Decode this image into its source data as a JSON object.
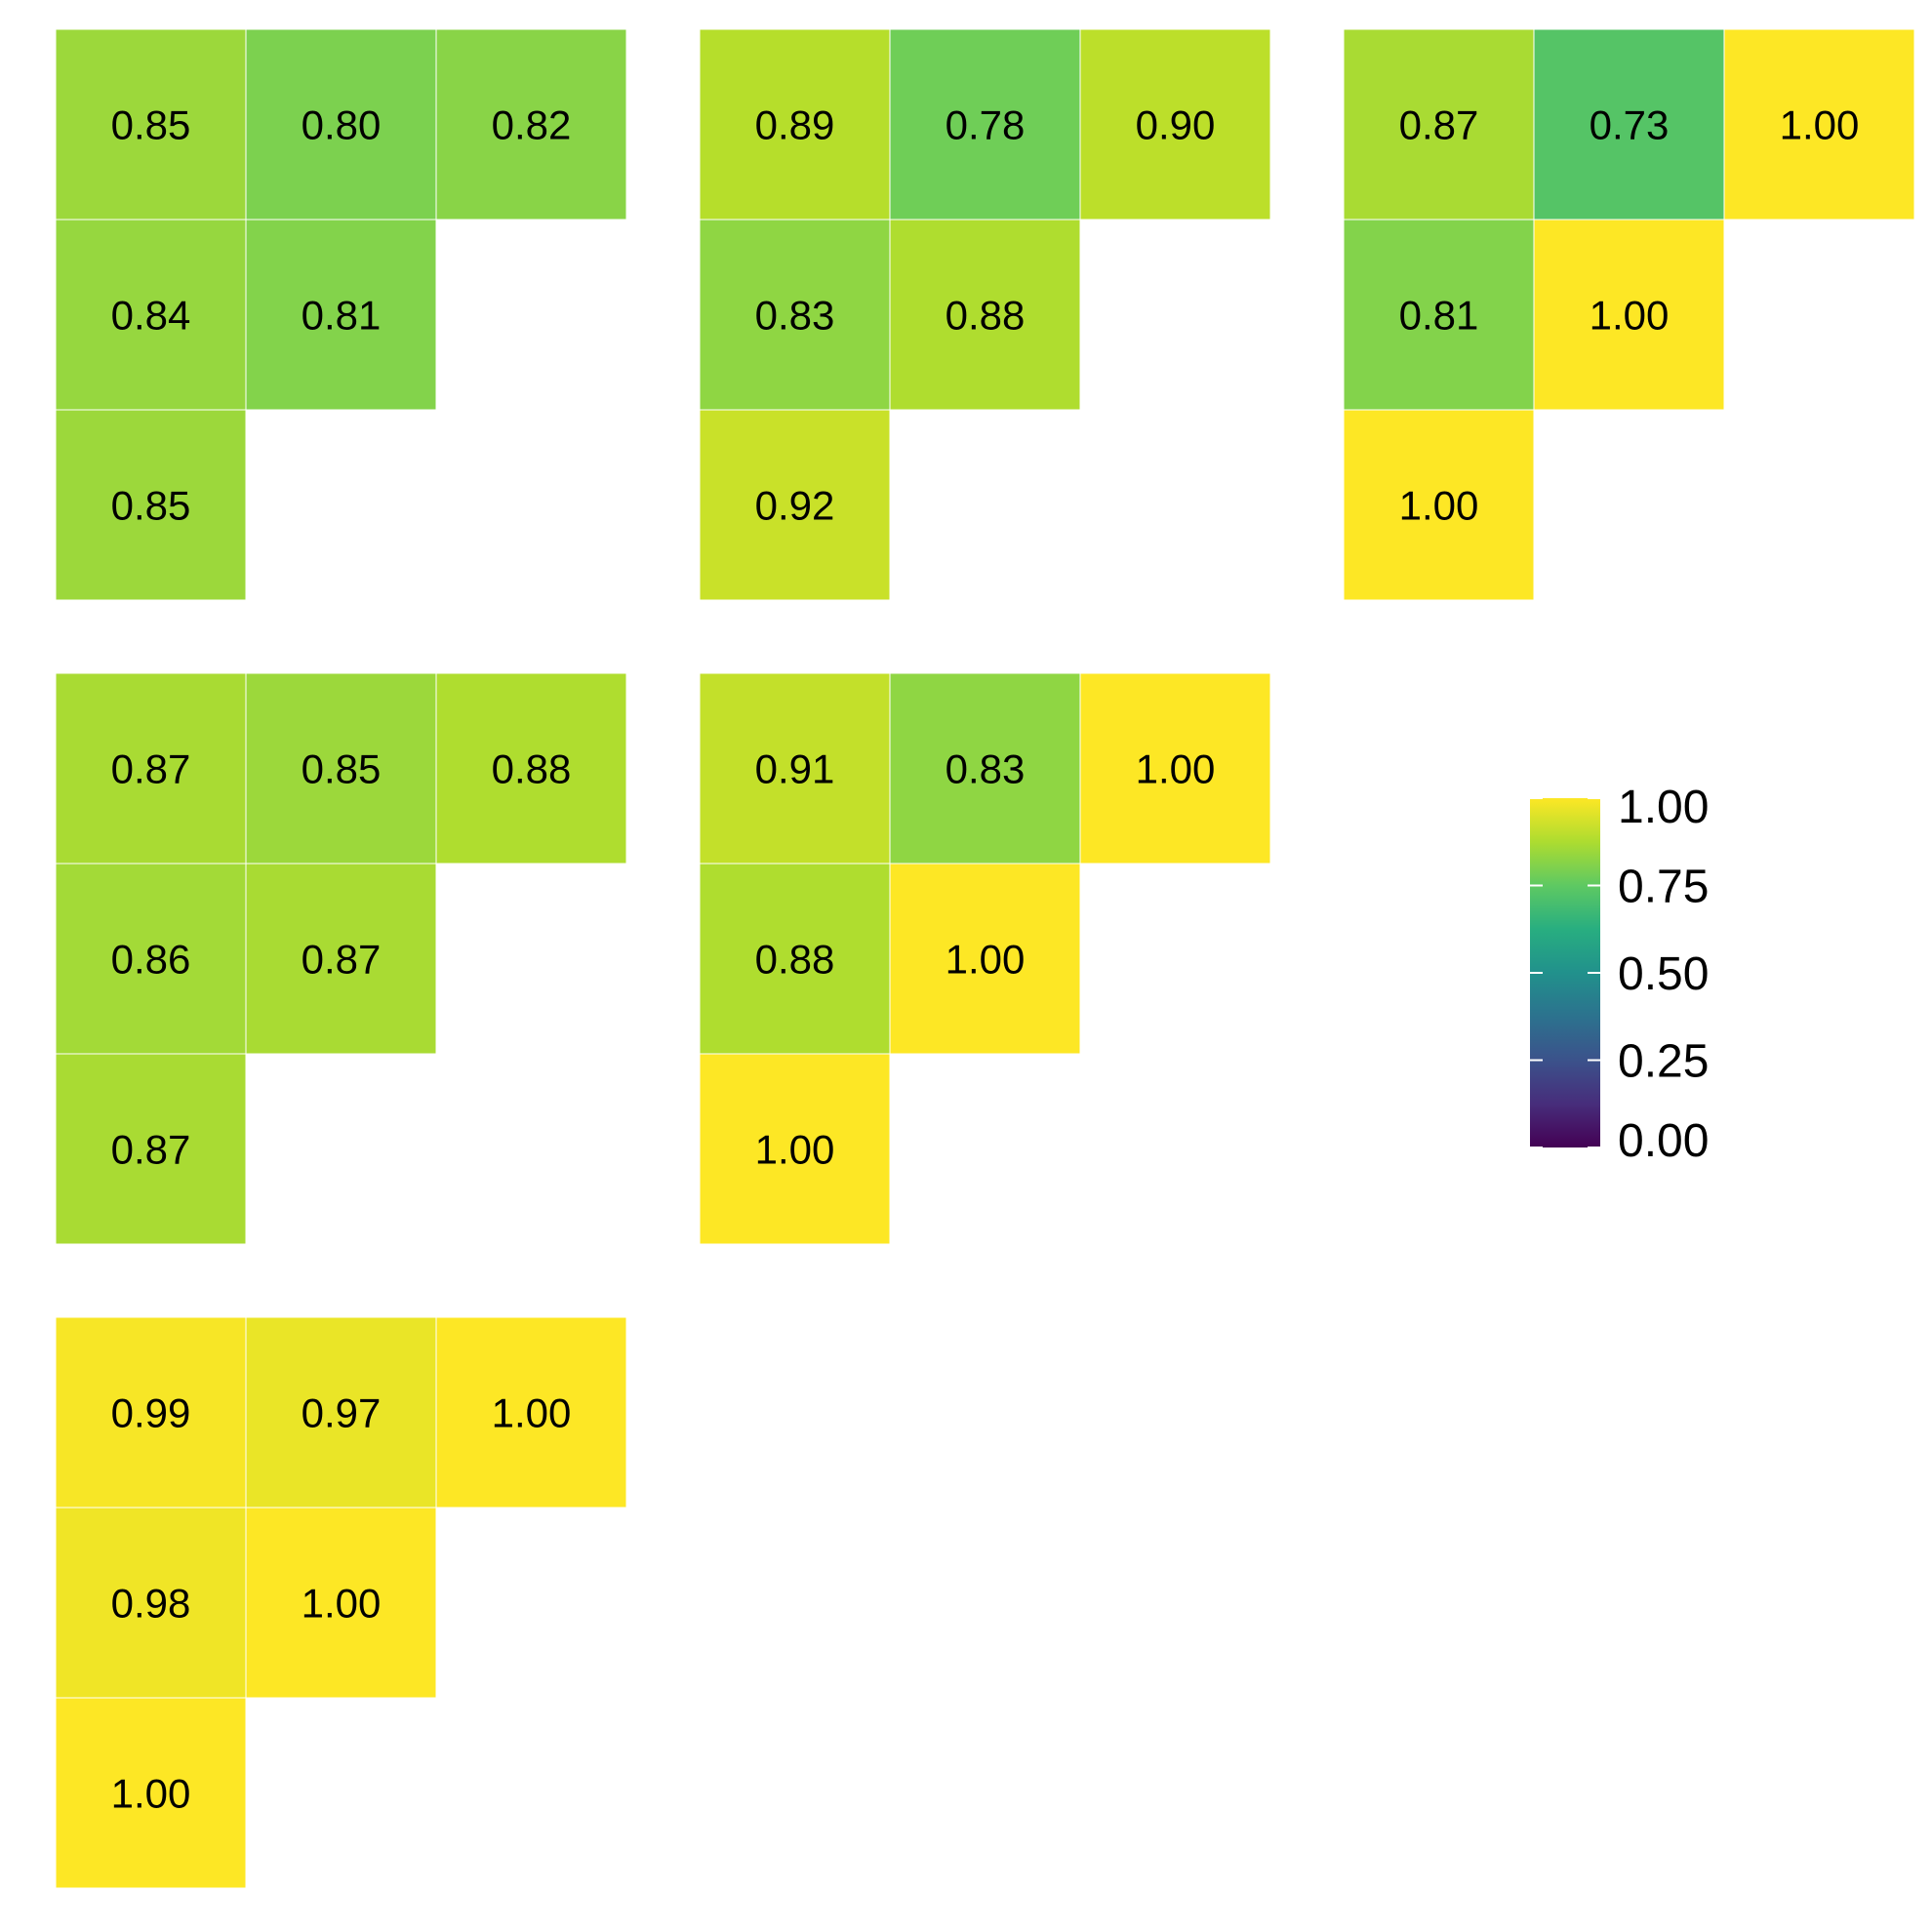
{
  "chart_data": [
    {
      "type": "heatmap",
      "values": [
        [
          0.85,
          0.8,
          0.82
        ],
        [
          0.84,
          0.81,
          null
        ],
        [
          0.85,
          null,
          null
        ]
      ]
    },
    {
      "type": "heatmap",
      "values": [
        [
          0.89,
          0.78,
          0.9
        ],
        [
          0.83,
          0.88,
          null
        ],
        [
          0.92,
          null,
          null
        ]
      ]
    },
    {
      "type": "heatmap",
      "values": [
        [
          0.87,
          0.73,
          1.0
        ],
        [
          0.81,
          1.0,
          null
        ],
        [
          1.0,
          null,
          null
        ]
      ]
    },
    {
      "type": "heatmap",
      "values": [
        [
          0.87,
          0.85,
          0.88
        ],
        [
          0.86,
          0.87,
          null
        ],
        [
          0.87,
          null,
          null
        ]
      ]
    },
    {
      "type": "heatmap",
      "values": [
        [
          0.91,
          0.83,
          1.0
        ],
        [
          0.88,
          1.0,
          null
        ],
        [
          1.0,
          null,
          null
        ]
      ]
    },
    {
      "type": "heatmap",
      "values": [
        [
          0.99,
          0.97,
          1.0
        ],
        [
          0.98,
          1.0,
          null
        ],
        [
          1.0,
          null,
          null
        ]
      ]
    }
  ],
  "legend": {
    "range": [
      0,
      1
    ],
    "ticks": [
      1.0,
      0.75,
      0.5,
      0.25,
      0.0
    ],
    "tick_labels": [
      "1.00",
      "0.75",
      "0.50",
      "0.25",
      "0.00"
    ],
    "colormap": "viridis"
  },
  "colors": {
    "background": "#ffffff",
    "cell_border": "#ffffff",
    "text": "#000000"
  }
}
